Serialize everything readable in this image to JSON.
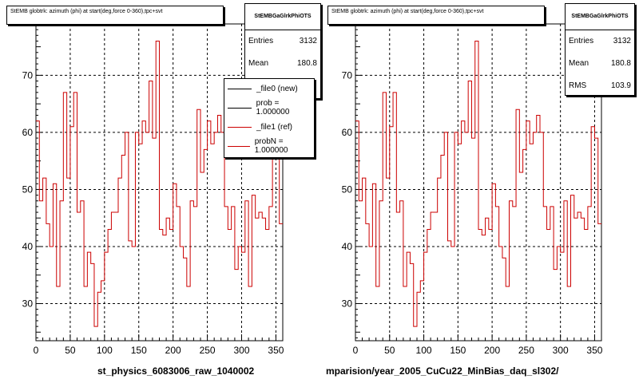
{
  "left_panel": {
    "title": "StEMB globtrk: azimuth (phi) at start(deg,force 0-360),tpc+svt",
    "stats": {
      "header": "StEMBGaGlrkPhiOTS",
      "entries_label": "Entries",
      "entries_value": "3132",
      "mean_label": "Mean",
      "mean_value": "180.8"
    },
    "legend": [
      {
        "label": "_file0 (new)",
        "color": "#000000"
      },
      {
        "label": "prob = 1.000000",
        "color": "#000000"
      },
      {
        "label": "_file1 (ref)",
        "color": "#cc0000"
      },
      {
        "label": "probN = 1.000000",
        "color": "#cc0000"
      }
    ],
    "bottom_label": "st_physics_6083006_raw_1040002"
  },
  "right_panel": {
    "title": "StEMB globtrk: azimuth (phi) at start(deg,force 0-360),tpc+svt",
    "stats": {
      "header": "StEMBGaGlrkPhiOTS",
      "entries_label": "Entries",
      "entries_value": "3132",
      "mean_label": "Mean",
      "mean_value": "180.8",
      "rms_label": "RMS",
      "rms_value": "103.9"
    },
    "bottom_label": "mparision/year_2005_CuCu22_MinBias_daq_sl302/"
  },
  "colors": {
    "histogram_line": "#cc0000"
  },
  "chart_data": [
    {
      "type": "line",
      "step": true,
      "xlim": [
        0,
        360
      ],
      "ylim": [
        23.5,
        79
      ],
      "xticks": [
        0,
        50,
        100,
        150,
        200,
        250,
        300,
        350
      ],
      "yticks": [
        30,
        40,
        50,
        60,
        70
      ],
      "grid": true,
      "bin_edges": [
        0,
        5,
        10,
        15,
        20,
        25,
        30,
        35,
        40,
        45,
        50,
        55,
        60,
        65,
        70,
        75,
        80,
        85,
        90,
        95,
        100,
        105,
        110,
        115,
        120,
        125,
        130,
        135,
        140,
        145,
        150,
        155,
        160,
        165,
        170,
        175,
        180,
        185,
        190,
        195,
        200,
        205,
        210,
        215,
        220,
        225,
        230,
        235,
        240,
        245,
        250,
        255,
        260,
        265,
        270,
        275,
        280,
        285,
        290,
        295,
        300,
        305,
        310,
        315,
        320,
        325,
        330,
        335,
        340,
        345,
        350,
        355,
        360
      ],
      "values": [
        62,
        48,
        52,
        44,
        40,
        51,
        33,
        48,
        67,
        52,
        61,
        67,
        46,
        48,
        33,
        39,
        37,
        26,
        32,
        34,
        39,
        43,
        46,
        46,
        52,
        56,
        60,
        41,
        40,
        60,
        58,
        62,
        60,
        69,
        59,
        76,
        43,
        42,
        45,
        43,
        51,
        47,
        40,
        38,
        33,
        48,
        47,
        64,
        53,
        57,
        62,
        58,
        60,
        63,
        60,
        47,
        43,
        47,
        36,
        40,
        39,
        48,
        33,
        49,
        45,
        46,
        45,
        43,
        47,
        61,
        59,
        44,
        48
      ]
    },
    {
      "type": "line",
      "step": true,
      "xlim": [
        0,
        360
      ],
      "ylim": [
        23.5,
        79
      ],
      "xticks": [
        0,
        50,
        100,
        150,
        200,
        250,
        300,
        350
      ],
      "yticks": [
        30,
        40,
        50,
        60,
        70
      ],
      "grid": true,
      "bin_edges": [
        0,
        5,
        10,
        15,
        20,
        25,
        30,
        35,
        40,
        45,
        50,
        55,
        60,
        65,
        70,
        75,
        80,
        85,
        90,
        95,
        100,
        105,
        110,
        115,
        120,
        125,
        130,
        135,
        140,
        145,
        150,
        155,
        160,
        165,
        170,
        175,
        180,
        185,
        190,
        195,
        200,
        205,
        210,
        215,
        220,
        225,
        230,
        235,
        240,
        245,
        250,
        255,
        260,
        265,
        270,
        275,
        280,
        285,
        290,
        295,
        300,
        305,
        310,
        315,
        320,
        325,
        330,
        335,
        340,
        345,
        350,
        355,
        360
      ],
      "values": [
        62,
        48,
        52,
        44,
        40,
        51,
        33,
        48,
        67,
        52,
        61,
        67,
        46,
        48,
        33,
        39,
        37,
        26,
        32,
        34,
        39,
        43,
        46,
        46,
        52,
        56,
        60,
        41,
        40,
        60,
        58,
        62,
        60,
        69,
        59,
        76,
        43,
        42,
        45,
        43,
        51,
        47,
        40,
        38,
        33,
        48,
        47,
        64,
        53,
        57,
        62,
        58,
        60,
        63,
        60,
        47,
        43,
        47,
        36,
        40,
        39,
        48,
        33,
        49,
        45,
        46,
        45,
        43,
        47,
        61,
        59,
        44,
        48
      ]
    }
  ]
}
